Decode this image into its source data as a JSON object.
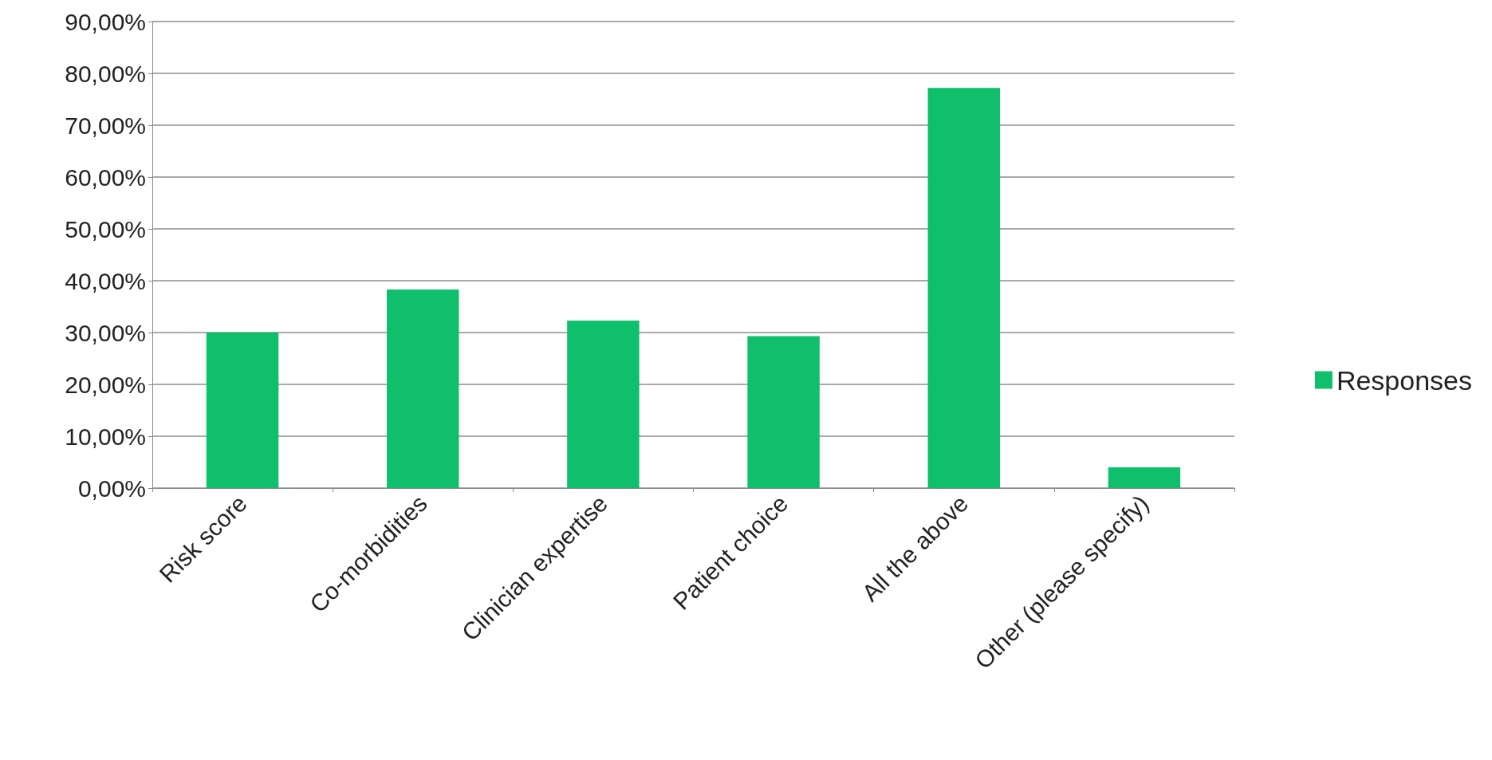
{
  "chart_data": {
    "type": "bar",
    "categories": [
      "Risk score",
      "Co-morbidities",
      "Clinician expertise",
      "Patient choice",
      "All the above",
      "Other (please specify)"
    ],
    "series": [
      {
        "name": "Responses",
        "color": "#0fbf6b",
        "values": [
          30.0,
          38.3,
          32.3,
          29.3,
          77.2,
          4.0
        ]
      }
    ],
    "ylim": [
      0,
      90
    ],
    "yticks": [
      {
        "value": 0,
        "label": "0,00%"
      },
      {
        "value": 10,
        "label": "10,00%"
      },
      {
        "value": 20,
        "label": "20,00%"
      },
      {
        "value": 30,
        "label": "30,00%"
      },
      {
        "value": 40,
        "label": "40,00%"
      },
      {
        "value": 50,
        "label": "50,00%"
      },
      {
        "value": 60,
        "label": "60,00%"
      },
      {
        "value": 70,
        "label": "70,00%"
      },
      {
        "value": 80,
        "label": "80,00%"
      },
      {
        "value": 90,
        "label": "90,00%"
      }
    ],
    "grid": "y",
    "legend": "right"
  }
}
